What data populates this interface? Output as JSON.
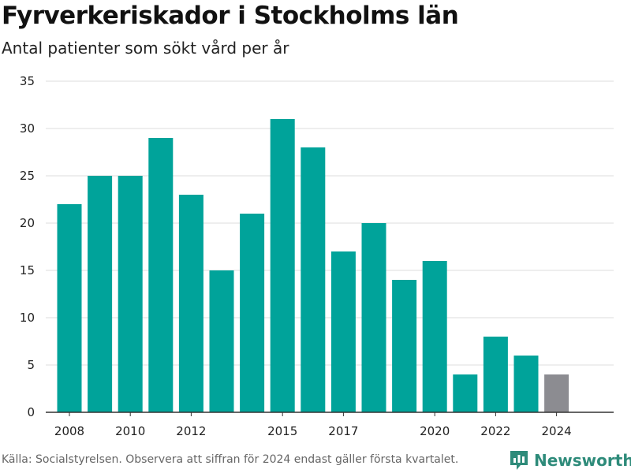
{
  "title": "Fyrverkeriskador i Stockholms län",
  "subtitle": "Antal patienter som sökt vård per år",
  "source": "Källa: Socialstyrelsen. Observera att siffran för 2024 endast gäller första kvartalet.",
  "logo": {
    "text": "Newsworthy",
    "icon": "newsworthy-logo-icon"
  },
  "colors": {
    "bar": "#00a39a",
    "bar_partial": "#8c8c91",
    "grid": "#dddddd",
    "axis": "#333333",
    "logo": "#2e8b7a"
  },
  "chart_data": {
    "type": "bar",
    "title": "Fyrverkeriskador i Stockholms län",
    "subtitle": "Antal patienter som sökt vård per år",
    "xlabel": "",
    "ylabel": "",
    "categories": [
      2008,
      2009,
      2010,
      2011,
      2012,
      2013,
      2014,
      2015,
      2016,
      2017,
      2018,
      2019,
      2020,
      2021,
      2022,
      2023,
      2024
    ],
    "values": [
      22,
      25,
      25,
      29,
      23,
      15,
      21,
      31,
      28,
      17,
      20,
      14,
      16,
      4,
      8,
      6,
      4
    ],
    "highlight": {
      "category": 2024,
      "color": "#8c8c91"
    },
    "x_tick_labels": [
      2008,
      2010,
      2012,
      2015,
      2017,
      2020,
      2022,
      2024
    ],
    "y_ticks": [
      0,
      5,
      10,
      15,
      20,
      25,
      30,
      35
    ],
    "ylim": [
      0,
      35
    ],
    "grid": "horizontal",
    "legend": "none"
  }
}
